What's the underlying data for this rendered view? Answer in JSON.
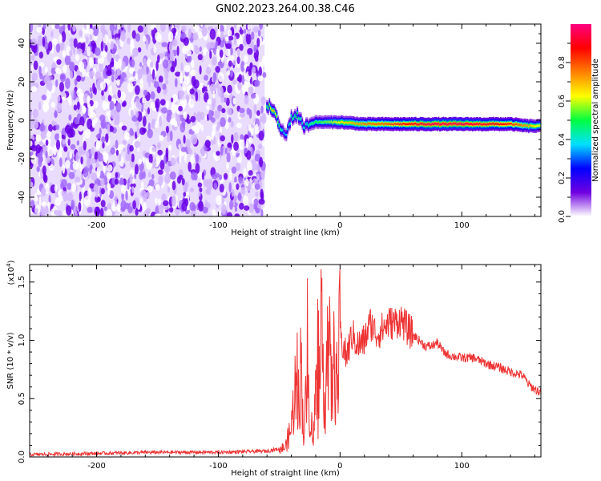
{
  "title": "GN02.2023.264.00.38.C46",
  "chart_data": [
    {
      "type": "heatmap",
      "xlabel": "Height of straight line (km)",
      "ylabel": "Frequency (Hz)",
      "xlim": [
        -255,
        165
      ],
      "ylim": [
        -50,
        50
      ],
      "x_ticks": [
        -200,
        -100,
        0,
        100
      ],
      "x_tick_labels": [
        "-200",
        "-100",
        "0",
        "100"
      ],
      "y_ticks": [
        -40,
        -20,
        0,
        20,
        40
      ],
      "y_tick_labels": [
        "-40",
        "-20",
        "0",
        "20",
        "40"
      ],
      "grid": false,
      "colorbar": {
        "label": "Normalized spectral amplitude",
        "range": [
          0,
          1
        ],
        "ticks": [
          0.0,
          0.2,
          0.4,
          0.6,
          0.8
        ],
        "tick_labels": [
          "0.0",
          "0.2",
          "0.4",
          "0.6",
          "0.8"
        ],
        "colormap": [
          "#ffffff",
          "#7000e0",
          "#0000ff",
          "#00e0ff",
          "#00ff40",
          "#ffff00",
          "#ff8000",
          "#ff0000",
          "#ff0080"
        ]
      },
      "noise_region_x": [
        -255,
        -62
      ],
      "signal_track": [
        {
          "x": -60,
          "freq": 7,
          "amp": 0.5
        },
        {
          "x": -55,
          "freq": 6,
          "amp": 0.7
        },
        {
          "x": -50,
          "freq": -3,
          "amp": 0.5
        },
        {
          "x": -45,
          "freq": -8,
          "amp": 0.35
        },
        {
          "x": -40,
          "freq": 1,
          "amp": 0.45
        },
        {
          "x": -35,
          "freq": 3,
          "amp": 0.5
        },
        {
          "x": -30,
          "freq": -3,
          "amp": 0.4
        },
        {
          "x": -20,
          "freq": -1,
          "amp": 0.5
        },
        {
          "x": -10,
          "freq": -1,
          "amp": 0.55
        },
        {
          "x": 0,
          "freq": -1,
          "amp": 0.65
        },
        {
          "x": 20,
          "freq": -2,
          "amp": 0.75
        },
        {
          "x": 40,
          "freq": -2,
          "amp": 0.8
        },
        {
          "x": 60,
          "freq": -2,
          "amp": 0.9
        },
        {
          "x": 80,
          "freq": -2,
          "amp": 0.95
        },
        {
          "x": 100,
          "freq": -2,
          "amp": 0.95
        },
        {
          "x": 120,
          "freq": -2,
          "amp": 0.9
        },
        {
          "x": 140,
          "freq": -2,
          "amp": 0.85
        },
        {
          "x": 155,
          "freq": -3,
          "amp": 0.7
        },
        {
          "x": 165,
          "freq": -3,
          "amp": 0.6
        }
      ]
    },
    {
      "type": "line",
      "xlabel": "Height of straight line (km)",
      "ylabel": "SNR (10 * v/v)",
      "y_multiplier": "(x10",
      "y_multiplier_exp": "4",
      "y_multiplier_close": ")",
      "xlim": [
        -255,
        165
      ],
      "ylim": [
        0,
        1.65
      ],
      "x_ticks": [
        -200,
        -100,
        0,
        100
      ],
      "x_tick_labels": [
        "-200",
        "-100",
        "0",
        "100"
      ],
      "y_ticks": [
        0.0,
        0.5,
        1.0,
        1.5
      ],
      "y_tick_labels": [
        "0.0",
        "0.5",
        "1.0",
        "1.5"
      ],
      "grid": false,
      "series": [
        {
          "color": "#ee3333",
          "x": [
            -255,
            -200,
            -150,
            -100,
            -60,
            -45,
            -40,
            -37,
            -35,
            -32,
            -30,
            -27,
            -25,
            -22,
            -20,
            -17,
            -15,
            -12,
            -10,
            -7,
            -5,
            -2,
            0,
            5,
            10,
            15,
            20,
            25,
            30,
            35,
            40,
            45,
            50,
            55,
            60,
            65,
            70,
            75,
            80,
            85,
            90,
            100,
            110,
            120,
            130,
            140,
            150,
            155,
            160,
            165
          ],
          "y": [
            0.02,
            0.03,
            0.04,
            0.04,
            0.05,
            0.08,
            0.25,
            0.6,
            0.35,
            0.8,
            0.2,
            0.6,
            0.45,
            0.1,
            0.6,
            0.3,
            0.95,
            0.5,
            1.1,
            0.55,
            0.8,
            0.6,
            1.05,
            0.85,
            1.05,
            0.95,
            1.0,
            1.15,
            1.05,
            1.1,
            1.15,
            1.15,
            1.18,
            1.1,
            1.05,
            1.0,
            0.95,
            0.95,
            0.98,
            0.9,
            0.87,
            0.85,
            0.85,
            0.8,
            0.77,
            0.73,
            0.7,
            0.62,
            0.58,
            0.55
          ]
        }
      ]
    }
  ]
}
